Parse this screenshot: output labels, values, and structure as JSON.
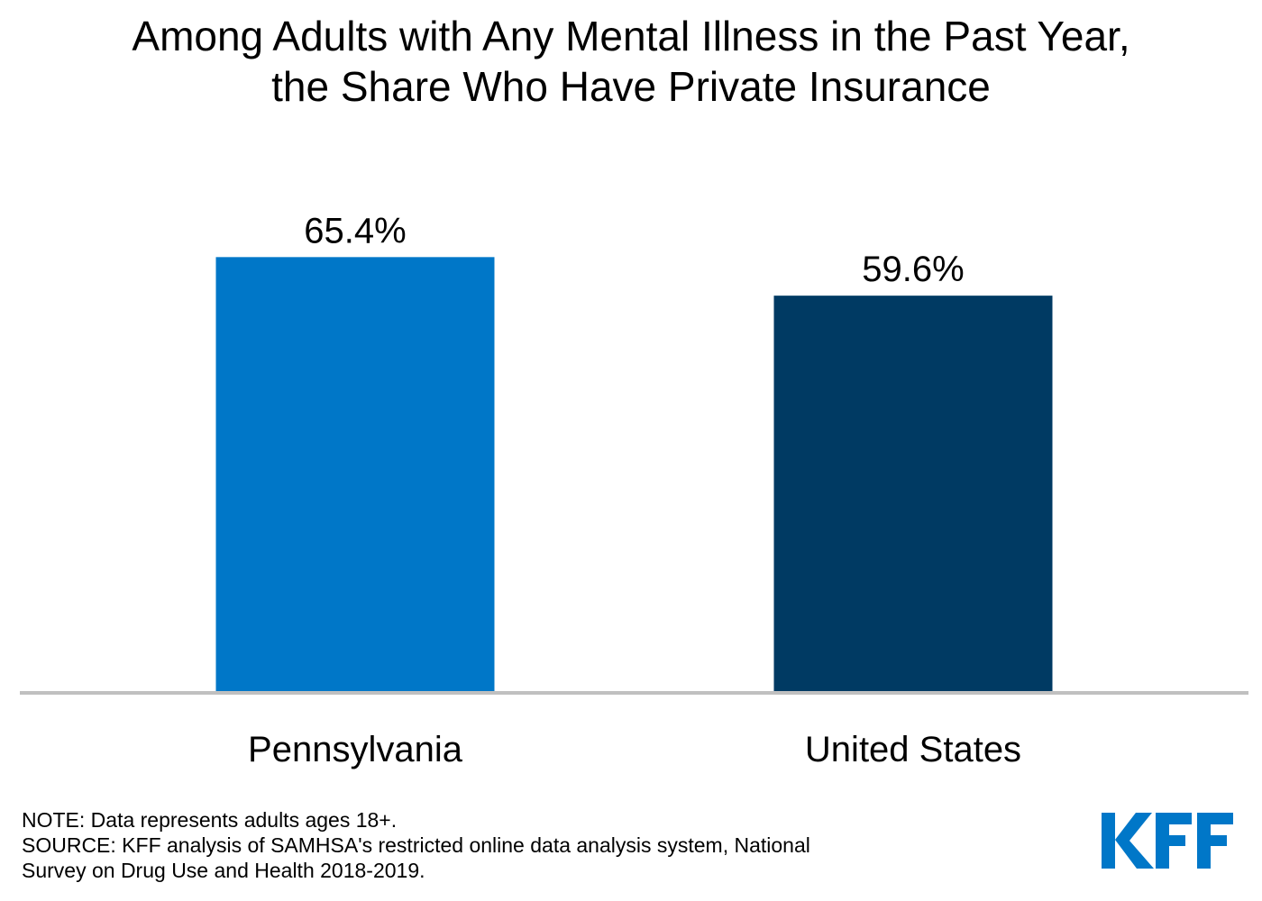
{
  "title_lines": [
    "Among Adults with Any Mental Illness in the Past Year,",
    "the Share Who Have Private Insurance"
  ],
  "chart_data": {
    "type": "bar",
    "categories": [
      "Pennsylvania",
      "United States"
    ],
    "values": [
      65.4,
      59.6
    ],
    "value_labels": [
      "65.4%",
      "59.6%"
    ],
    "colors": [
      "#0077c8",
      "#003a63"
    ],
    "ylim": [
      0,
      100
    ],
    "xlabel": "",
    "ylabel": "",
    "grid": false,
    "axis_color": "#c0c0c0"
  },
  "notes": {
    "note": "NOTE: Data represents adults ages 18+.",
    "source_line1": "SOURCE: KFF analysis of SAMHSA's restricted online data analysis system, National",
    "source_line2": "Survey on Drug Use and Health 2018-2019."
  },
  "logo": {
    "text": "KFF",
    "color": "#0077c8"
  }
}
